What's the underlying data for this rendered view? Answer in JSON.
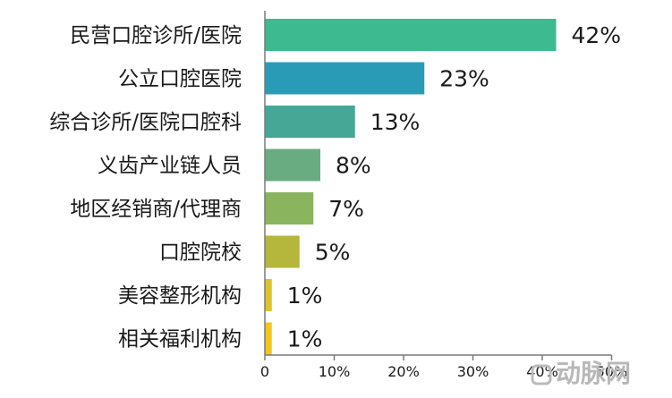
{
  "chart_data": {
    "type": "bar",
    "orientation": "horizontal",
    "categories": [
      "民营口腔诊所/医院",
      "公立口腔医院",
      "综合诊所/医院口腔科",
      "义齿产业链人员",
      "地区经销商/代理商",
      "口腔院校",
      "美容整形机构",
      "相关福利机构"
    ],
    "values": [
      42,
      23,
      13,
      8,
      7,
      5,
      1,
      1
    ],
    "value_labels": [
      "42%",
      "23%",
      "13%",
      "8%",
      "7%",
      "5%",
      "1%",
      "1%"
    ],
    "colors": [
      "#3dba8f",
      "#2a9bb6",
      "#47a796",
      "#6aac82",
      "#8bb45e",
      "#b5b73c",
      "#ddc22b",
      "#f3c51f"
    ],
    "x_ticks": [
      "0",
      "10%",
      "20%",
      "30%",
      "40%",
      "50%"
    ],
    "xlim": [
      0,
      50
    ],
    "grid": false,
    "title": "",
    "xlabel": "",
    "ylabel": ""
  },
  "watermark": {
    "text": "动脉网"
  }
}
